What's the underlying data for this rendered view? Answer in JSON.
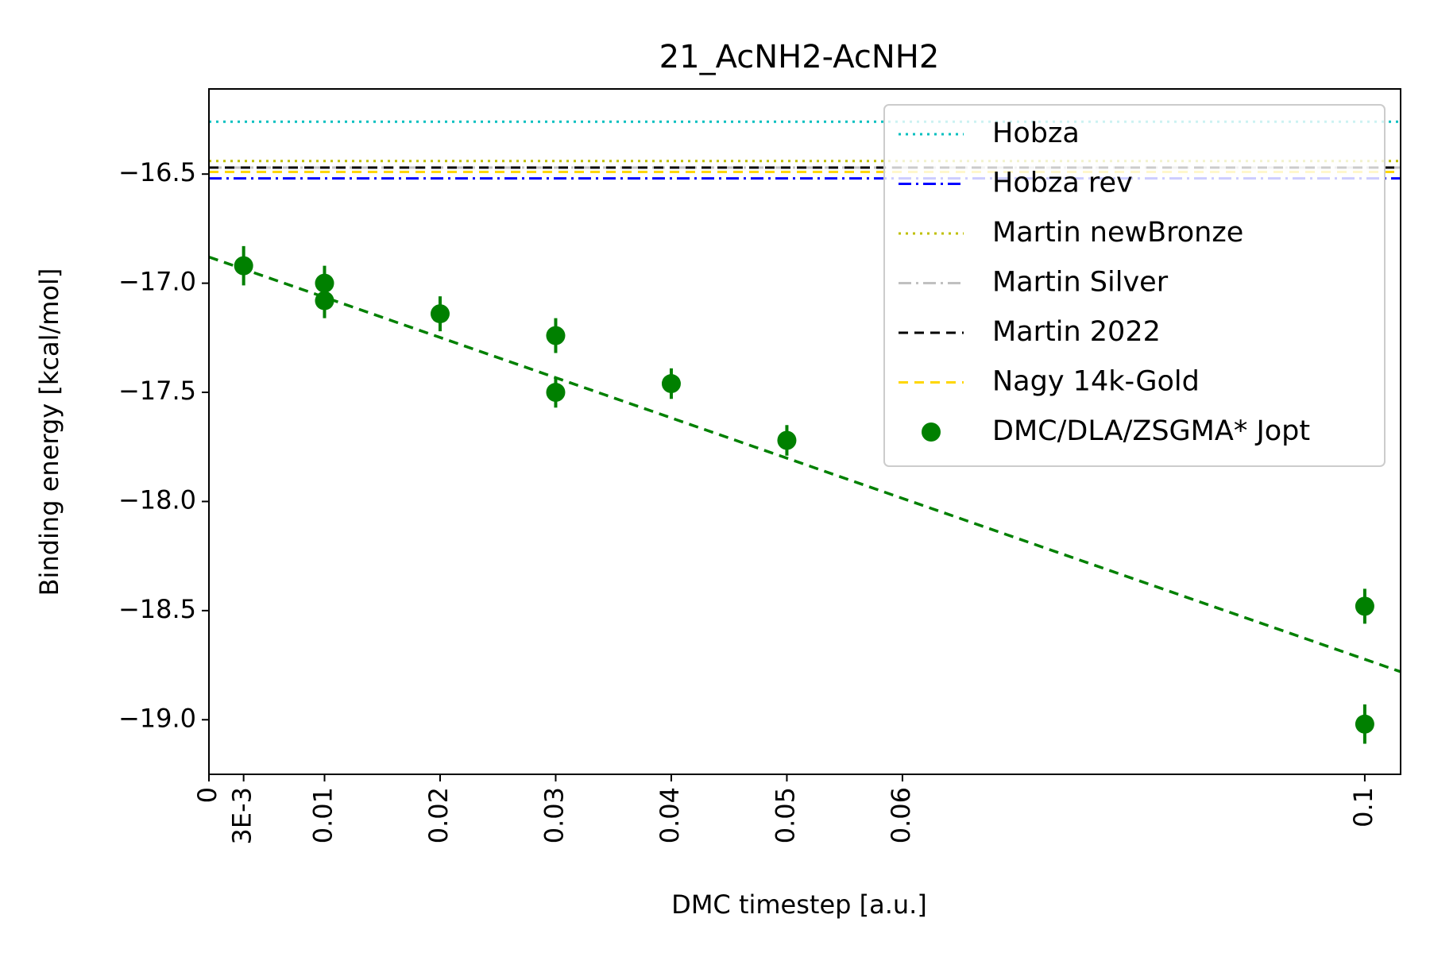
{
  "chart_data": {
    "type": "scatter",
    "title": "21_AcNH2-AcNH2",
    "xlabel": "DMC timestep [a.u.]",
    "ylabel": "Binding energy [kcal/mol]",
    "xlim": [
      0,
      0.1031
    ],
    "ylim": [
      -19.25,
      -16.11
    ],
    "x_ticks": [
      {
        "value": 0,
        "label": "0"
      },
      {
        "value": 0.003,
        "label": "3E-3"
      },
      {
        "value": 0.01,
        "label": "0.01"
      },
      {
        "value": 0.02,
        "label": "0.02"
      },
      {
        "value": 0.03,
        "label": "0.03"
      },
      {
        "value": 0.04,
        "label": "0.04"
      },
      {
        "value": 0.05,
        "label": "0.05"
      },
      {
        "value": 0.06,
        "label": "0.06"
      },
      {
        "value": 0.1,
        "label": "0.1"
      }
    ],
    "y_ticks": [
      {
        "value": -16.5,
        "label": "−16.5"
      },
      {
        "value": -17.0,
        "label": "−17.0"
      },
      {
        "value": -17.5,
        "label": "−17.5"
      },
      {
        "value": -18.0,
        "label": "−18.0"
      },
      {
        "value": -18.5,
        "label": "−18.5"
      },
      {
        "value": -19.0,
        "label": "−19.0"
      }
    ],
    "reference_lines": [
      {
        "name": "Hobza",
        "y": -16.26,
        "color": "#00bfbf",
        "style": "dotted"
      },
      {
        "name": "Hobza rev",
        "y": -16.52,
        "color": "#0000ff",
        "style": "dashdot"
      },
      {
        "name": "Martin newBronze",
        "y": -16.44,
        "color": "#bfbf00",
        "style": "dotted"
      },
      {
        "name": "Martin Silver",
        "y": -16.47,
        "color": "#c0c0c0",
        "style": "dashdot"
      },
      {
        "name": "Martin 2022",
        "y": -16.47,
        "color": "#000000",
        "style": "dashed"
      },
      {
        "name": "Nagy 14k-Gold",
        "y": -16.49,
        "color": "#ffd700",
        "style": "dashed"
      }
    ],
    "series": [
      {
        "name": "DMC/DLA/ZSGMA* Jopt",
        "color": "#008000",
        "points": [
          {
            "x": 0.003,
            "y": -16.92,
            "err": 0.09
          },
          {
            "x": 0.01,
            "y": -17.0,
            "err": 0.08
          },
          {
            "x": 0.01,
            "y": -17.08,
            "err": 0.08
          },
          {
            "x": 0.02,
            "y": -17.14,
            "err": 0.08
          },
          {
            "x": 0.03,
            "y": -17.24,
            "err": 0.08
          },
          {
            "x": 0.03,
            "y": -17.5,
            "err": 0.07
          },
          {
            "x": 0.04,
            "y": -17.46,
            "err": 0.07
          },
          {
            "x": 0.05,
            "y": -17.72,
            "err": 0.07
          },
          {
            "x": 0.1,
            "y": -18.48,
            "err": 0.08
          },
          {
            "x": 0.1,
            "y": -19.02,
            "err": 0.09
          }
        ]
      }
    ],
    "fit_line": {
      "color": "#008000",
      "style": "dashed",
      "x": [
        0,
        0.1031
      ],
      "y": [
        -16.88,
        -18.78
      ]
    },
    "legend": {
      "placement": "top-right",
      "entries": [
        "Hobza",
        "Hobza rev",
        "Martin newBronze",
        "Martin Silver",
        "Martin 2022",
        "Nagy 14k-Gold",
        "DMC/DLA/ZSGMA* Jopt"
      ]
    },
    "grid": false
  }
}
